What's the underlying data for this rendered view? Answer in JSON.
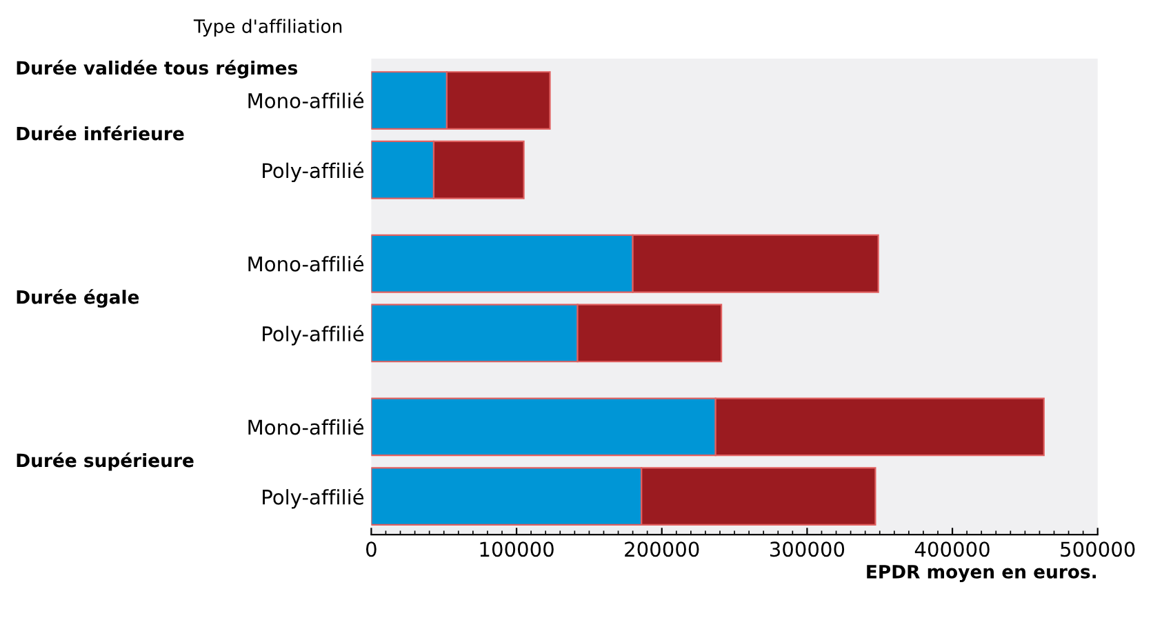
{
  "chart_data": {
    "type": "bar",
    "orientation": "horizontal",
    "stacked": true,
    "categories": [
      "Mono-affilié",
      "Poly-affilié",
      "Mono-affilié",
      "Poly-affilié",
      "Mono-affilié",
      "Poly-affilié"
    ],
    "series": [
      {
        "color": "#0096d6",
        "values": [
          52000,
          43000,
          180000,
          142000,
          237000,
          186000
        ]
      },
      {
        "color": "#9b1b20",
        "values": [
          71000,
          62000,
          169000,
          99000,
          226000,
          161000
        ]
      }
    ],
    "ylabel": "Type d'affiliation",
    "xlabel": "EPDR moyen en euros.",
    "annotations": [
      "Durée validée tous régimes",
      "Durée inférieure",
      "Durée égale",
      "Durée supérieure"
    ],
    "xlim": [
      0,
      500000
    ],
    "xticks": [
      0,
      100000,
      200000,
      300000,
      400000,
      500000
    ],
    "grid": false,
    "legend": false
  }
}
